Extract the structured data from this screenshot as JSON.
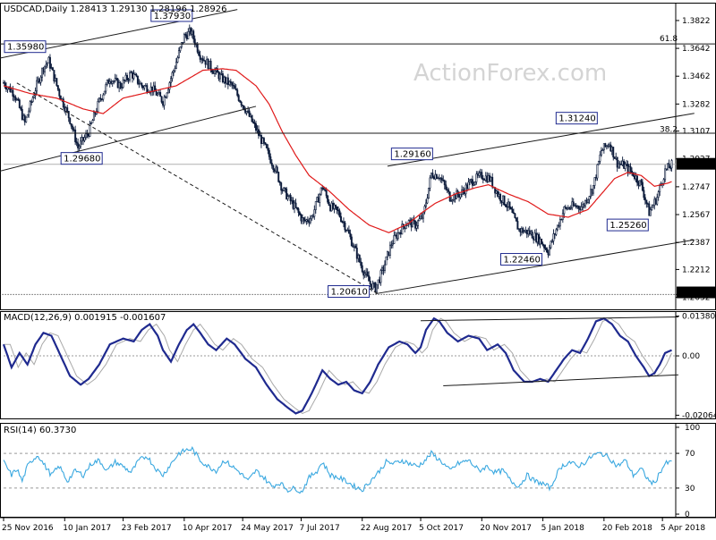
{
  "chart_data": {
    "type": "candlestick",
    "price_panel": {
      "header": "USDCAD,Daily  1.28413 1.29130 1.28196 1.28926",
      "watermark": "ActionForex.com",
      "y_ticks": [
        1.3822,
        1.3642,
        1.3462,
        1.3282,
        1.3107,
        1.2927,
        1.2747,
        1.2567,
        1.2387,
        1.2212,
        1.2032
      ],
      "ylim": [
        1.196,
        1.392
      ],
      "current_price": "1.28926",
      "current_value": 1.28926,
      "low_marker": "1.20610",
      "low_marker_value": 1.2061,
      "fib_levels": [
        {
          "label": "61.8",
          "value": 1.367
        },
        {
          "label": "38.2",
          "value": 1.3085
        }
      ],
      "swing_labels": [
        {
          "text": "1.35980",
          "value": 1.3598,
          "day": 0
        },
        {
          "text": "1.37930",
          "value": 1.3793,
          "day": 140
        },
        {
          "text": "1.29680",
          "value": 1.2968,
          "day": 52
        },
        {
          "text": "1.20610",
          "value": 1.2061,
          "day": 280
        },
        {
          "text": "1.29160",
          "value": 1.2916,
          "day": 325
        },
        {
          "text": "1.22460",
          "value": 1.2246,
          "day": 410
        },
        {
          "text": "1.31240",
          "value": 1.3124,
          "day": 453
        },
        {
          "text": "1.25260",
          "value": 1.2526,
          "day": 486
        }
      ],
      "close_anchors": [
        [
          0,
          1.342
        ],
        [
          8,
          1.335
        ],
        [
          16,
          1.316
        ],
        [
          24,
          1.338
        ],
        [
          30,
          1.352
        ],
        [
          34,
          1.356
        ],
        [
          42,
          1.335
        ],
        [
          50,
          1.318
        ],
        [
          56,
          1.3
        ],
        [
          64,
          1.31
        ],
        [
          72,
          1.33
        ],
        [
          80,
          1.345
        ],
        [
          88,
          1.34
        ],
        [
          96,
          1.348
        ],
        [
          104,
          1.34
        ],
        [
          112,
          1.338
        ],
        [
          120,
          1.33
        ],
        [
          128,
          1.35
        ],
        [
          136,
          1.372
        ],
        [
          141,
          1.375
        ],
        [
          148,
          1.36
        ],
        [
          156,
          1.352
        ],
        [
          164,
          1.345
        ],
        [
          172,
          1.34
        ],
        [
          182,
          1.325
        ],
        [
          190,
          1.312
        ],
        [
          198,
          1.298
        ],
        [
          205,
          1.285
        ],
        [
          210,
          1.273
        ],
        [
          218,
          1.263
        ],
        [
          226,
          1.252
        ],
        [
          232,
          1.255
        ],
        [
          240,
          1.275
        ],
        [
          246,
          1.262
        ],
        [
          252,
          1.258
        ],
        [
          258,
          1.248
        ],
        [
          264,
          1.235
        ],
        [
          270,
          1.222
        ],
        [
          276,
          1.212
        ],
        [
          280,
          1.209
        ],
        [
          286,
          1.222
        ],
        [
          292,
          1.238
        ],
        [
          298,
          1.246
        ],
        [
          304,
          1.252
        ],
        [
          310,
          1.25
        ],
        [
          316,
          1.256
        ],
        [
          322,
          1.283
        ],
        [
          328,
          1.282
        ],
        [
          336,
          1.268
        ],
        [
          344,
          1.27
        ],
        [
          352,
          1.278
        ],
        [
          360,
          1.282
        ],
        [
          366,
          1.28
        ],
        [
          372,
          1.27
        ],
        [
          380,
          1.262
        ],
        [
          388,
          1.247
        ],
        [
          396,
          1.245
        ],
        [
          404,
          1.24
        ],
        [
          410,
          1.233
        ],
        [
          416,
          1.247
        ],
        [
          422,
          1.26
        ],
        [
          428,
          1.262
        ],
        [
          436,
          1.262
        ],
        [
          444,
          1.275
        ],
        [
          450,
          1.298
        ],
        [
          456,
          1.303
        ],
        [
          462,
          1.29
        ],
        [
          468,
          1.288
        ],
        [
          474,
          1.283
        ],
        [
          480,
          1.276
        ],
        [
          486,
          1.258
        ],
        [
          492,
          1.268
        ],
        [
          498,
          1.285
        ],
        [
          503,
          1.289
        ]
      ],
      "ma_anchors": [
        [
          0,
          1.34
        ],
        [
          20,
          1.335
        ],
        [
          40,
          1.332
        ],
        [
          60,
          1.325
        ],
        [
          75,
          1.322
        ],
        [
          90,
          1.332
        ],
        [
          110,
          1.336
        ],
        [
          130,
          1.34
        ],
        [
          150,
          1.35
        ],
        [
          165,
          1.351
        ],
        [
          175,
          1.35
        ],
        [
          190,
          1.34
        ],
        [
          200,
          1.328
        ],
        [
          210,
          1.31
        ],
        [
          220,
          1.295
        ],
        [
          230,
          1.282
        ],
        [
          245,
          1.272
        ],
        [
          260,
          1.26
        ],
        [
          275,
          1.25
        ],
        [
          290,
          1.245
        ],
        [
          305,
          1.251
        ],
        [
          315,
          1.258
        ],
        [
          325,
          1.264
        ],
        [
          340,
          1.27
        ],
        [
          355,
          1.274
        ],
        [
          365,
          1.276
        ],
        [
          380,
          1.27
        ],
        [
          395,
          1.265
        ],
        [
          410,
          1.257
        ],
        [
          425,
          1.255
        ],
        [
          440,
          1.26
        ],
        [
          450,
          1.27
        ],
        [
          460,
          1.28
        ],
        [
          470,
          1.284
        ],
        [
          480,
          1.282
        ],
        [
          490,
          1.275
        ],
        [
          500,
          1.277
        ],
        [
          503,
          1.278
        ]
      ],
      "trend_lines": [
        {
          "from": [
            -5,
            1.3575
          ],
          "to": [
            176,
            1.3893
          ],
          "style": "solid"
        },
        {
          "from": [
            -5,
            1.2843
          ],
          "to": [
            190,
            1.3267
          ],
          "style": "solid"
        },
        {
          "from": [
            -5,
            1.3093
          ],
          "to": [
            600,
            1.3093
          ],
          "style": "solid"
        },
        {
          "from": [
            -5,
            1.3671
          ],
          "to": [
            600,
            1.3671
          ],
          "style": "solid"
        },
        {
          "from": [
            -5,
            1.205
          ],
          "to": [
            600,
            1.205
          ],
          "style": "dotted"
        },
        {
          "from": [
            10,
            1.3418
          ],
          "to": [
            282,
            1.2055
          ],
          "style": "dashed"
        },
        {
          "from": [
            280,
            1.2055
          ],
          "to": [
            520,
            1.2404
          ],
          "style": "solid"
        },
        {
          "from": [
            289,
            1.288
          ],
          "to": [
            520,
            1.3222
          ],
          "style": "solid"
        }
      ]
    },
    "macd_panel": {
      "header": "MACD(12,26,9) 0.001915 -0.001607",
      "y_ticks": [
        "0.013800",
        "0.00",
        "-0.020648"
      ],
      "ylim": [
        -0.0214,
        0.0146
      ],
      "macd_anchors": [
        [
          0,
          0.004
        ],
        [
          6,
          -0.004
        ],
        [
          12,
          0.001
        ],
        [
          18,
          -0.003
        ],
        [
          24,
          0.004
        ],
        [
          30,
          0.008
        ],
        [
          36,
          0.007
        ],
        [
          42,
          0.001
        ],
        [
          50,
          -0.007
        ],
        [
          58,
          -0.01
        ],
        [
          64,
          -0.008
        ],
        [
          72,
          -0.003
        ],
        [
          80,
          0.004
        ],
        [
          90,
          0.006
        ],
        [
          98,
          0.005
        ],
        [
          104,
          0.009
        ],
        [
          110,
          0.011
        ],
        [
          116,
          0.007
        ],
        [
          120,
          0.002
        ],
        [
          126,
          -0.002
        ],
        [
          132,
          0.004
        ],
        [
          138,
          0.009
        ],
        [
          143,
          0.011
        ],
        [
          148,
          0.008
        ],
        [
          154,
          0.004
        ],
        [
          160,
          0.002
        ],
        [
          168,
          0.006
        ],
        [
          174,
          0.004
        ],
        [
          182,
          -0.001
        ],
        [
          190,
          -0.004
        ],
        [
          198,
          -0.01
        ],
        [
          206,
          -0.015
        ],
        [
          214,
          -0.018
        ],
        [
          220,
          -0.02
        ],
        [
          225,
          -0.019
        ],
        [
          232,
          -0.013
        ],
        [
          240,
          -0.005
        ],
        [
          246,
          -0.008
        ],
        [
          252,
          -0.01
        ],
        [
          258,
          -0.009
        ],
        [
          264,
          -0.012
        ],
        [
          270,
          -0.013
        ],
        [
          276,
          -0.009
        ],
        [
          282,
          -0.003
        ],
        [
          290,
          0.003
        ],
        [
          298,
          0.005
        ],
        [
          304,
          0.004
        ],
        [
          310,
          0.001
        ],
        [
          314,
          0.003
        ],
        [
          318,
          0.009
        ],
        [
          324,
          0.013
        ],
        [
          328,
          0.012
        ],
        [
          334,
          0.008
        ],
        [
          342,
          0.005
        ],
        [
          350,
          0.007
        ],
        [
          358,
          0.006
        ],
        [
          364,
          0.002
        ],
        [
          372,
          0.004
        ],
        [
          378,
          0.001
        ],
        [
          384,
          -0.005
        ],
        [
          392,
          -0.009
        ],
        [
          398,
          -0.009
        ],
        [
          404,
          -0.008
        ],
        [
          410,
          -0.009
        ],
        [
          416,
          -0.005
        ],
        [
          422,
          -0.001
        ],
        [
          428,
          0.002
        ],
        [
          434,
          0.001
        ],
        [
          440,
          0.006
        ],
        [
          446,
          0.012
        ],
        [
          452,
          0.013
        ],
        [
          458,
          0.011
        ],
        [
          464,
          0.007
        ],
        [
          470,
          0.005
        ],
        [
          476,
          0.0
        ],
        [
          482,
          -0.004
        ],
        [
          486,
          -0.007
        ],
        [
          490,
          -0.006
        ],
        [
          494,
          -0.003
        ],
        [
          498,
          0.001
        ],
        [
          503,
          0.002
        ]
      ],
      "trend_lines": [
        {
          "from": [
            314,
            0.0122
          ],
          "to": [
            508,
            0.0135
          ]
        },
        {
          "from": [
            331,
            -0.0104
          ],
          "to": [
            508,
            -0.0066
          ]
        }
      ]
    },
    "rsi_panel": {
      "header": "RSI(14) 60.3730",
      "y_ticks": [
        100,
        70,
        30,
        0
      ],
      "ylim": [
        -2,
        102
      ],
      "rsi_anchors": [
        [
          0,
          60
        ],
        [
          6,
          45
        ],
        [
          10,
          52
        ],
        [
          14,
          38
        ],
        [
          18,
          55
        ],
        [
          22,
          63
        ],
        [
          26,
          68
        ],
        [
          30,
          58
        ],
        [
          36,
          45
        ],
        [
          42,
          55
        ],
        [
          48,
          38
        ],
        [
          54,
          50
        ],
        [
          60,
          45
        ],
        [
          66,
          58
        ],
        [
          72,
          62
        ],
        [
          78,
          50
        ],
        [
          84,
          60
        ],
        [
          90,
          55
        ],
        [
          96,
          48
        ],
        [
          102,
          62
        ],
        [
          108,
          67
        ],
        [
          112,
          58
        ],
        [
          116,
          50
        ],
        [
          120,
          45
        ],
        [
          126,
          58
        ],
        [
          132,
          70
        ],
        [
          138,
          74
        ],
        [
          142,
          75
        ],
        [
          148,
          62
        ],
        [
          154,
          55
        ],
        [
          160,
          50
        ],
        [
          166,
          62
        ],
        [
          172,
          55
        ],
        [
          178,
          48
        ],
        [
          184,
          38
        ],
        [
          190,
          50
        ],
        [
          196,
          42
        ],
        [
          202,
          32
        ],
        [
          208,
          36
        ],
        [
          214,
          28
        ],
        [
          220,
          30
        ],
        [
          224,
          25
        ],
        [
          230,
          42
        ],
        [
          236,
          50
        ],
        [
          240,
          60
        ],
        [
          246,
          45
        ],
        [
          252,
          42
        ],
        [
          258,
          38
        ],
        [
          264,
          32
        ],
        [
          270,
          28
        ],
        [
          276,
          38
        ],
        [
          282,
          48
        ],
        [
          288,
          60
        ],
        [
          294,
          58
        ],
        [
          300,
          62
        ],
        [
          306,
          58
        ],
        [
          312,
          55
        ],
        [
          318,
          63
        ],
        [
          322,
          70
        ],
        [
          326,
          65
        ],
        [
          330,
          60
        ],
        [
          336,
          50
        ],
        [
          342,
          58
        ],
        [
          350,
          62
        ],
        [
          358,
          50
        ],
        [
          364,
          55
        ],
        [
          370,
          48
        ],
        [
          376,
          50
        ],
        [
          382,
          38
        ],
        [
          388,
          32
        ],
        [
          394,
          45
        ],
        [
          400,
          38
        ],
        [
          406,
          35
        ],
        [
          412,
          30
        ],
        [
          416,
          45
        ],
        [
          420,
          55
        ],
        [
          426,
          60
        ],
        [
          432,
          55
        ],
        [
          438,
          60
        ],
        [
          444,
          68
        ],
        [
          450,
          70
        ],
        [
          456,
          65
        ],
        [
          462,
          55
        ],
        [
          468,
          62
        ],
        [
          474,
          45
        ],
        [
          480,
          52
        ],
        [
          486,
          38
        ],
        [
          490,
          35
        ],
        [
          494,
          48
        ],
        [
          498,
          58
        ],
        [
          503,
          60
        ]
      ]
    },
    "x_ticks": [
      {
        "label": "25 Nov 2016",
        "day": 0
      },
      {
        "label": "10 Jan 2017",
        "day": 46
      },
      {
        "label": "23 Feb 2017",
        "day": 90
      },
      {
        "label": "10 Apr 2017",
        "day": 136
      },
      {
        "label": "24 May 2017",
        "day": 180
      },
      {
        "label": "7 Jul 2017",
        "day": 224
      },
      {
        "label": "22 Aug 2017",
        "day": 270
      },
      {
        "label": "5 Oct 2017",
        "day": 314
      },
      {
        "label": "20 Nov 2017",
        "day": 360
      },
      {
        "label": "5 Jan 2018",
        "day": 406
      },
      {
        "label": "20 Feb 2018",
        "day": 452
      },
      {
        "label": "5 Apr 2018",
        "day": 496
      }
    ],
    "colors": {
      "candle": "#0b1a3a",
      "ma": "#e01a1a",
      "macd": "#1f2a8f",
      "signal": "#a8a8a8",
      "rsi": "#3aa8e0",
      "line": "#1a1a1a",
      "ref": "#b0b0b0"
    }
  }
}
